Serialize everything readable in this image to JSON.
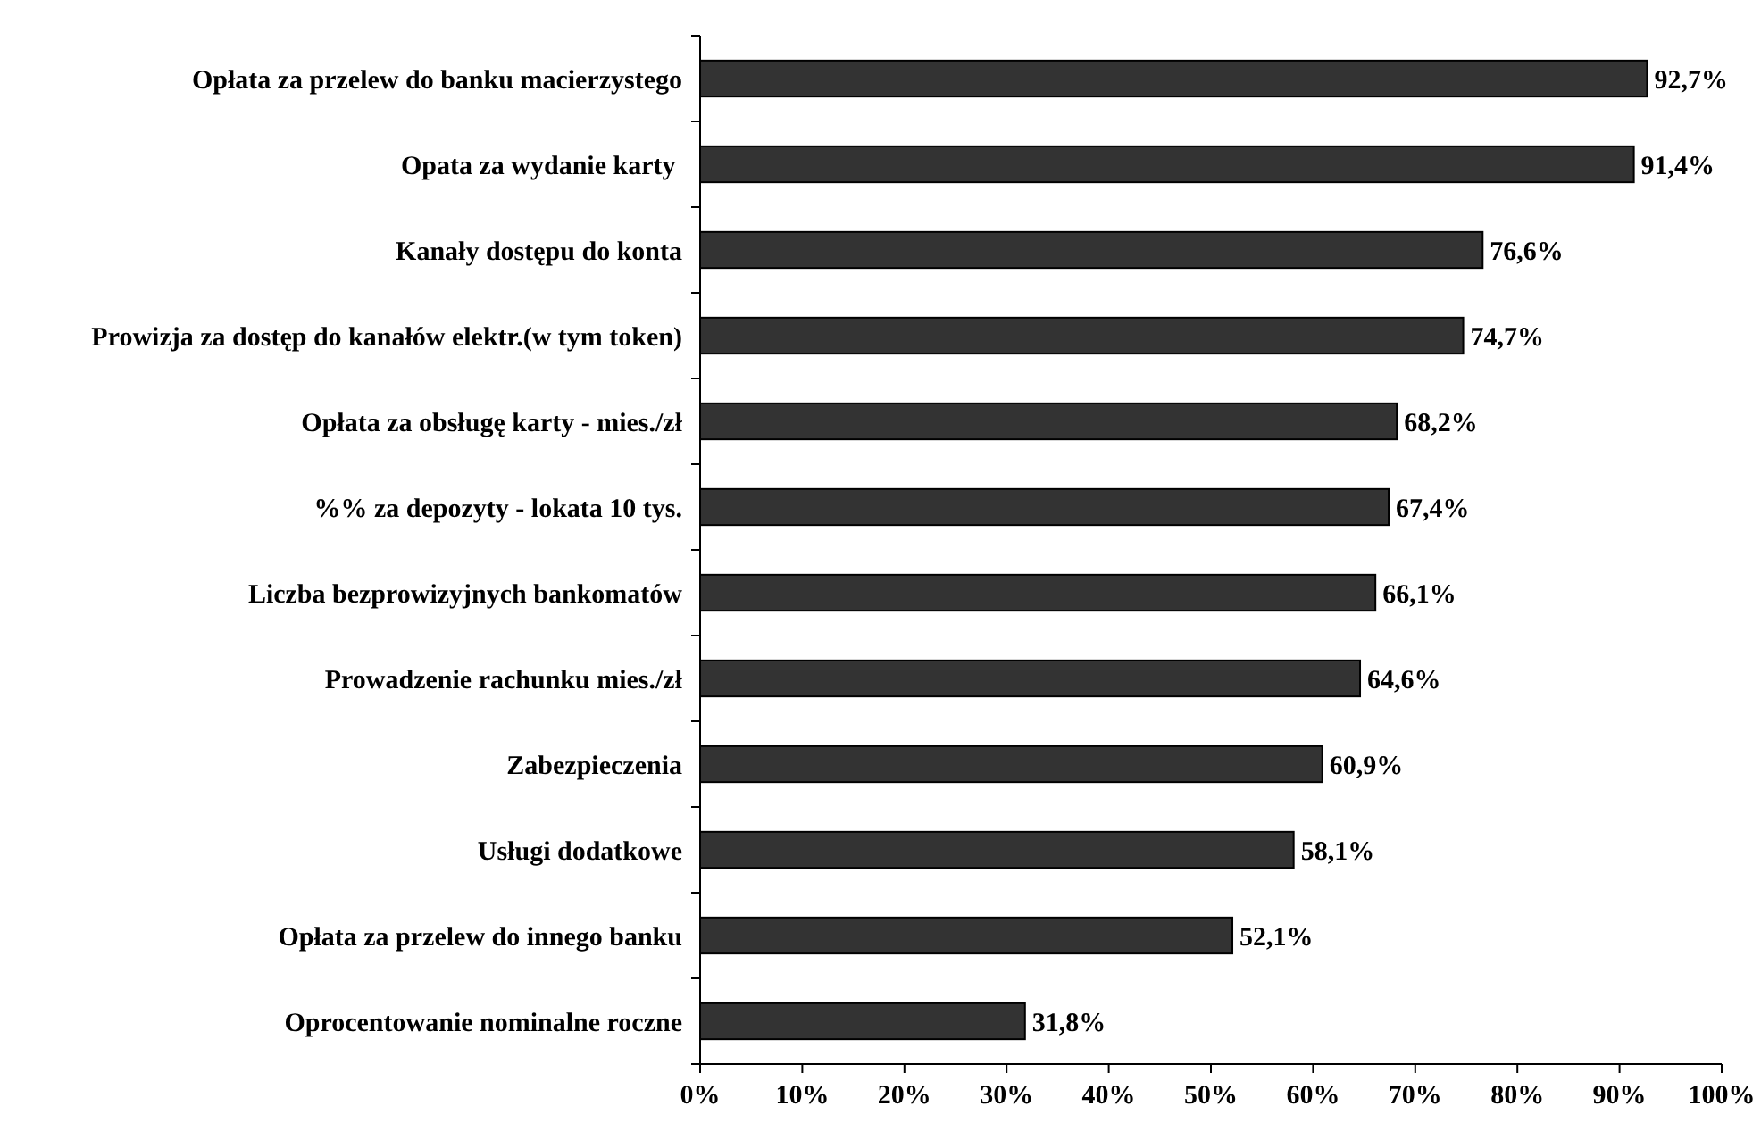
{
  "chart_data": {
    "type": "bar",
    "orientation": "horizontal",
    "categories": [
      "Opłata za przelew do banku macierzystego",
      "Opata za wydanie karty ",
      "Kanały dostępu do konta",
      "Prowizja za dostęp do kanałów elektr.(w tym token)",
      "Opłata za obsługę karty - mies./zł",
      "%% za depozyty - lokata 10 tys.",
      "Liczba bezprowizyjnych bankomatów",
      "Prowadzenie rachunku mies./zł",
      "Zabezpieczenia",
      "Usługi dodatkowe",
      "Opłata za przelew do innego banku",
      "Oprocentowanie nominalne roczne"
    ],
    "values": [
      92.7,
      91.4,
      76.6,
      74.7,
      68.2,
      67.4,
      66.1,
      64.6,
      60.9,
      58.1,
      52.1,
      31.8
    ],
    "value_labels": [
      "92,7%",
      "91,4%",
      "76,6%",
      "74,7%",
      "68,2%",
      "67,4%",
      "66,1%",
      "64,6%",
      "60,9%",
      "58,1%",
      "52,1%",
      "31,8%"
    ],
    "color": "#333333",
    "xlim": [
      0,
      100
    ],
    "xticks": [
      {
        "value": 0,
        "label": "0%"
      },
      {
        "value": 10,
        "label": "10%"
      },
      {
        "value": 20,
        "label": "20%"
      },
      {
        "value": 30,
        "label": "30%"
      },
      {
        "value": 40,
        "label": "40%"
      },
      {
        "value": 50,
        "label": "50%"
      },
      {
        "value": 60,
        "label": "60%"
      },
      {
        "value": 70,
        "label": "70%"
      },
      {
        "value": 80,
        "label": "80%"
      },
      {
        "value": 90,
        "label": "90%"
      },
      {
        "value": 100,
        "label": "100%"
      }
    ],
    "grid": false
  }
}
